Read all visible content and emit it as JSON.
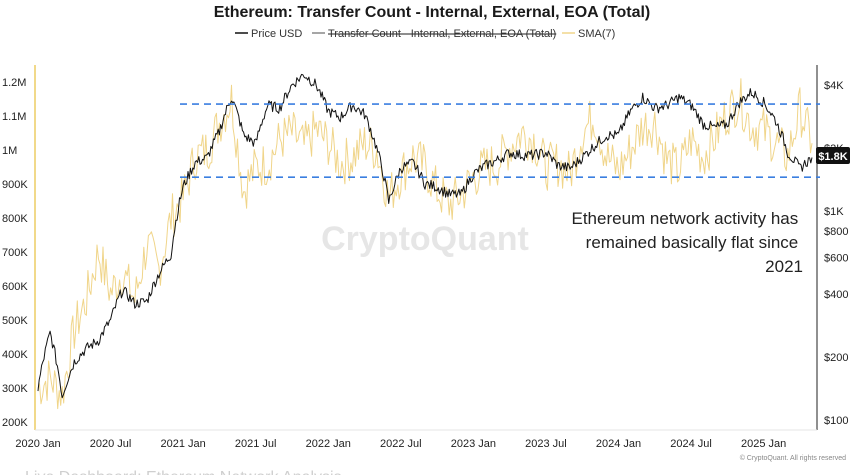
{
  "chart_data": {
    "type": "line",
    "title": "Ethereum: Transfer Count - Internal, External, EOA (Total)",
    "legend": [
      {
        "name": "Price USD",
        "color": "#111111",
        "active": true
      },
      {
        "name": "Transfer Count - Internal, External, EOA (Total)",
        "color": "#888888",
        "active": false
      },
      {
        "name": "SMA(7)",
        "color": "#f0d58a",
        "active": true
      }
    ],
    "x_ticks": [
      "2020 Jan",
      "2020 Jul",
      "2021 Jan",
      "2021 Jul",
      "2022 Jan",
      "2022 Jul",
      "2023 Jan",
      "2023 Jul",
      "2024 Jan",
      "2024 Jul",
      "2025 Jan"
    ],
    "left_axis": {
      "ticks": [
        "200K",
        "300K",
        "400K",
        "500K",
        "600K",
        "700K",
        "800K",
        "900K",
        "1M",
        "1.1M",
        "1.2M"
      ],
      "ylim": [
        200000,
        1200000
      ]
    },
    "right_axis": {
      "scale": "log",
      "ticks": [
        "$100",
        "$200",
        "$400",
        "$600",
        "$800",
        "$1K",
        "$2K",
        "$4K"
      ],
      "ylim": [
        100,
        4000
      ]
    },
    "current_price_label": "$1.8K",
    "reference_lines": [
      {
        "y_left": 1135000
      },
      {
        "y_left": 920000
      }
    ],
    "annotation": "Ethereum network activity has remained basically flat since 2021",
    "watermark": "CryptoQuant",
    "copyright": "© CryptoQuant. All rights reserved",
    "price_series": {
      "name": "Price USD",
      "x": [
        "2020-01",
        "2020-02",
        "2020-03",
        "2020-04",
        "2020-05",
        "2020-06",
        "2020-07",
        "2020-08",
        "2020-09",
        "2020-10",
        "2020-11",
        "2020-12",
        "2021-01",
        "2021-02",
        "2021-03",
        "2021-04",
        "2021-05",
        "2021-06",
        "2021-07",
        "2021-08",
        "2021-09",
        "2021-10",
        "2021-11",
        "2021-12",
        "2022-01",
        "2022-02",
        "2022-03",
        "2022-04",
        "2022-05",
        "2022-06",
        "2022-07",
        "2022-08",
        "2022-09",
        "2022-10",
        "2022-11",
        "2022-12",
        "2023-01",
        "2023-02",
        "2023-03",
        "2023-04",
        "2023-05",
        "2023-06",
        "2023-07",
        "2023-08",
        "2023-09",
        "2023-10",
        "2023-11",
        "2023-12",
        "2024-01",
        "2024-02",
        "2024-03",
        "2024-04",
        "2024-05",
        "2024-06",
        "2024-07",
        "2024-08",
        "2024-09",
        "2024-10",
        "2024-11",
        "2024-12",
        "2025-01",
        "2025-02",
        "2025-03",
        "2025-04",
        "2025-05"
      ],
      "values": [
        140,
        260,
        130,
        190,
        220,
        240,
        300,
        420,
        360,
        370,
        500,
        620,
        1300,
        1700,
        1800,
        2400,
        3500,
        2300,
        2100,
        3200,
        3100,
        4000,
        4500,
        4000,
        3000,
        2800,
        3200,
        2900,
        2000,
        1100,
        1600,
        1700,
        1350,
        1300,
        1200,
        1200,
        1500,
        1650,
        1750,
        1900,
        1850,
        1850,
        1900,
        1650,
        1600,
        1800,
        2050,
        2300,
        2300,
        3000,
        3500,
        3100,
        3200,
        3500,
        3200,
        2600,
        2500,
        2600,
        3300,
        3700,
        3300,
        2700,
        1900,
        1600,
        1800
      ]
    },
    "sma_series": {
      "name": "SMA(7)",
      "x": [
        "2020-01",
        "2020-02",
        "2020-03",
        "2020-04",
        "2020-05",
        "2020-06",
        "2020-07",
        "2020-08",
        "2020-09",
        "2020-10",
        "2020-11",
        "2020-12",
        "2021-01",
        "2021-02",
        "2021-03",
        "2021-04",
        "2021-05",
        "2021-06",
        "2021-07",
        "2021-08",
        "2021-09",
        "2021-10",
        "2021-11",
        "2021-12",
        "2022-01",
        "2022-02",
        "2022-03",
        "2022-04",
        "2022-05",
        "2022-06",
        "2022-07",
        "2022-08",
        "2022-09",
        "2022-10",
        "2022-11",
        "2022-12",
        "2023-01",
        "2023-02",
        "2023-03",
        "2023-04",
        "2023-05",
        "2023-06",
        "2023-07",
        "2023-08",
        "2023-09",
        "2023-10",
        "2023-11",
        "2023-12",
        "2024-01",
        "2024-02",
        "2024-03",
        "2024-04",
        "2024-05",
        "2024-06",
        "2024-07",
        "2024-08",
        "2024-09",
        "2024-10",
        "2024-11",
        "2024-12",
        "2025-01",
        "2025-02",
        "2025-03",
        "2025-04",
        "2025-05"
      ],
      "values": [
        300000,
        330000,
        280000,
        470000,
        560000,
        700000,
        580000,
        640000,
        560000,
        720000,
        650000,
        800000,
        860000,
        980000,
        1000000,
        1080000,
        1150000,
        880000,
        950000,
        960000,
        1030000,
        1050000,
        1010000,
        1060000,
        1020000,
        960000,
        980000,
        1020000,
        1000000,
        860000,
        930000,
        980000,
        950000,
        880000,
        840000,
        870000,
        920000,
        950000,
        960000,
        1010000,
        1050000,
        1030000,
        950000,
        960000,
        930000,
        1050000,
        1100000,
        980000,
        940000,
        1000000,
        1070000,
        1080000,
        970000,
        940000,
        1030000,
        980000,
        1040000,
        1110000,
        1150000,
        1070000,
        1060000,
        1020000,
        980000,
        1120000,
        1020000
      ]
    }
  }
}
